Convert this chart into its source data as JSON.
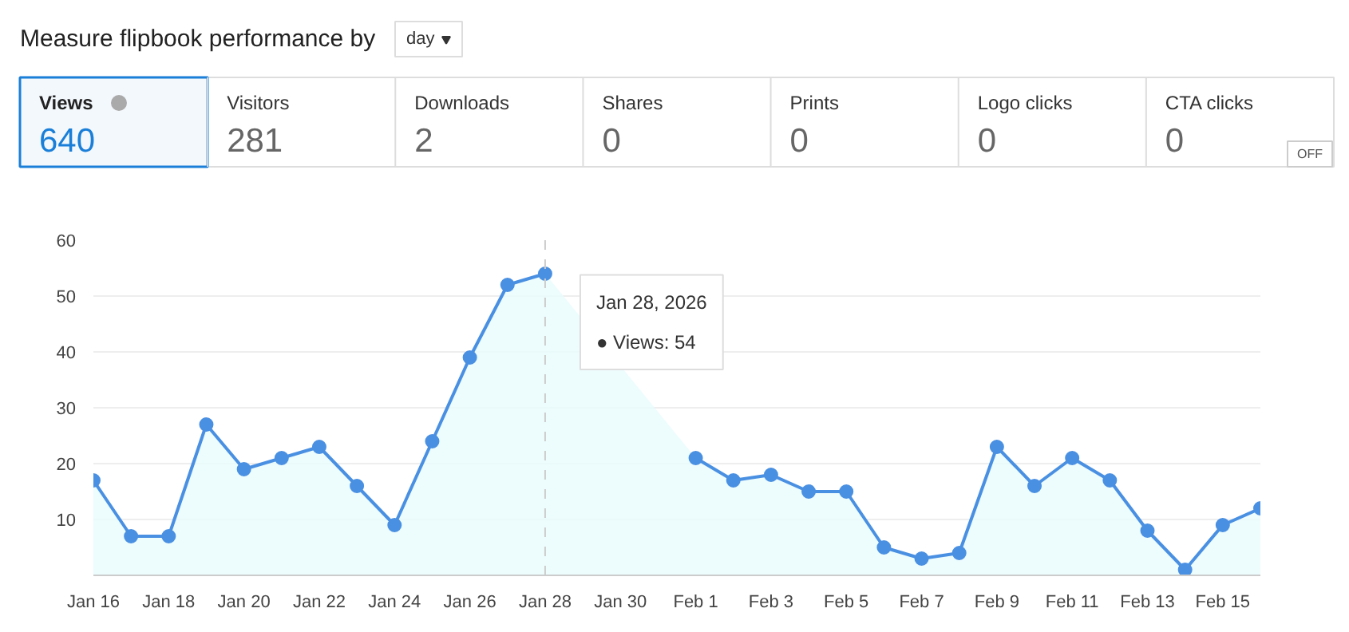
{
  "chart_data": [
    {
      "type": "other",
      "title": "Measure flipbook performance by",
      "categories": [
        "Views",
        "Visitors",
        "Downloads",
        "Shares",
        "Prints",
        "Logo clicks",
        "CTA clicks"
      ],
      "values": [
        640,
        281,
        2,
        0,
        0,
        0,
        0
      ],
      "data_labels": true,
      "annotations": [
        "day",
        "OFF"
      ]
    },
    {
      "type": "area",
      "x": [
        "2026-01-16",
        "2026-01-17",
        "2026-01-18",
        "2026-01-19",
        "2026-01-20",
        "2026-01-21",
        "2026-01-22",
        "2026-01-23",
        "2026-01-24",
        "2026-01-25",
        "2026-01-26",
        "2026-01-27",
        "2026-01-28",
        "2026-01-29",
        "2026-01-30",
        "2026-01-31",
        "2026-02-01",
        "2026-02-02",
        "2026-02-03",
        "2026-02-04",
        "2026-02-05",
        "2026-02-06",
        "2026-02-07",
        "2026-02-08",
        "2026-02-09",
        "2026-02-10",
        "2026-02-11",
        "2026-02-12",
        "2026-02-13",
        "2026-02-14",
        "2026-02-15",
        "2026-02-16"
      ],
      "series": [
        {
          "color": "#4a90e2",
          "values": [
            17,
            7,
            7,
            27,
            19,
            21,
            23,
            16,
            9,
            24,
            39,
            52,
            54,
            null,
            null,
            null,
            21,
            17,
            18,
            15,
            15,
            5,
            3,
            4,
            23,
            16,
            21,
            17,
            8,
            1,
            9,
            12
          ]
        }
      ],
      "xlim": [
        "2026-01-16",
        "2026-02-16"
      ],
      "xticks": [
        {
          "value": "2026-01-16",
          "label": "Jan 16"
        },
        {
          "value": "2026-01-18",
          "label": "Jan 18"
        },
        {
          "value": "2026-01-20",
          "label": "Jan 20"
        },
        {
          "value": "2026-01-22",
          "label": "Jan 22"
        },
        {
          "value": "2026-01-24",
          "label": "Jan 24"
        },
        {
          "value": "2026-01-26",
          "label": "Jan 26"
        },
        {
          "value": "2026-01-28",
          "label": "Jan 28"
        },
        {
          "value": "2026-01-30",
          "label": "Jan 30"
        },
        {
          "value": "2026-02-01",
          "label": "Feb 1"
        },
        {
          "value": "2026-02-03",
          "label": "Feb 3"
        },
        {
          "value": "2026-02-05",
          "label": "Feb 5"
        },
        {
          "value": "2026-02-07",
          "label": "Feb 7"
        },
        {
          "value": "2026-02-09",
          "label": "Feb 9"
        },
        {
          "value": "2026-02-11",
          "label": "Feb 11"
        },
        {
          "value": "2026-02-13",
          "label": "Feb 13"
        },
        {
          "value": "2026-02-15",
          "label": "Feb 15"
        }
      ],
      "ylim": [
        0,
        60
      ],
      "yticks": [
        10,
        20,
        30,
        40,
        50,
        60
      ],
      "grid": "y",
      "marker": "circle",
      "ref_lines": [
        {
          "axis": "x",
          "value": "2026-01-28",
          "color": "#cccccc",
          "line_style": "dashed"
        }
      ],
      "annotations": [
        {
          "text": "Jan 28, 2026\n● Views: 54",
          "x": "2026-01-28",
          "y": 54
        }
      ]
    }
  ]
}
